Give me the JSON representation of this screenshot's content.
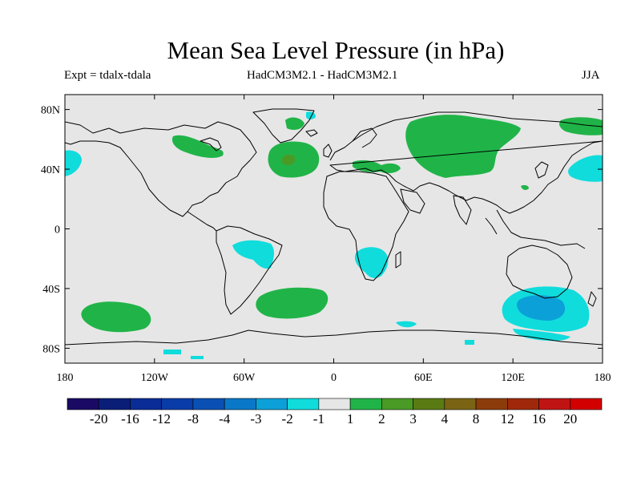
{
  "title": "Mean Sea Level Pressure (in hPa)",
  "subtitle_left": "Expt = tdalx-tdala",
  "subtitle_center": "HadCM3M2.1 - HadCM3M2.1",
  "subtitle_right": "JJA",
  "map": {
    "lon_range": [
      -180,
      180
    ],
    "lat_range": [
      -90,
      90
    ],
    "lat_ticks": [
      {
        "lat": 80,
        "label": "80N"
      },
      {
        "lat": 40,
        "label": "40N"
      },
      {
        "lat": 0,
        "label": "0"
      },
      {
        "lat": -40,
        "label": "40S"
      },
      {
        "lat": -80,
        "label": "80S"
      }
    ],
    "lon_ticks": [
      {
        "lon": -180,
        "label": "180"
      },
      {
        "lon": -120,
        "label": "120W"
      },
      {
        "lon": -60,
        "label": "60W"
      },
      {
        "lon": 0,
        "label": "0"
      },
      {
        "lon": 60,
        "label": "60E"
      },
      {
        "lon": 120,
        "label": "120E"
      },
      {
        "lon": 180,
        "label": "180"
      }
    ],
    "background_color": "#e6e6e6",
    "coastline_color": "#000000"
  },
  "colorbar": {
    "colors": [
      "#1a0a64",
      "#0a1e78",
      "#0a2c96",
      "#0a3ca8",
      "#0a50b4",
      "#0a78c8",
      "#0ca0d8",
      "#10dcdc",
      "#e6e6e6",
      "#20b448",
      "#4a9a26",
      "#5a7a14",
      "#7a6414",
      "#8c3c0a",
      "#a0280a",
      "#c01414",
      "#d20000"
    ],
    "labels": [
      "-20",
      "-16",
      "-12",
      "-8",
      "-4",
      "-3",
      "-2",
      "-1",
      "1",
      "2",
      "3",
      "4",
      "8",
      "12",
      "16",
      "20"
    ]
  },
  "anomaly_regions": [
    {
      "name": "north-atlantic-positive",
      "level": "2",
      "color": "#20b448"
    },
    {
      "name": "north-atlantic-positive-core",
      "level": "3",
      "color": "#4a9a26"
    },
    {
      "name": "eurasia-positive",
      "level": "2",
      "color": "#20b448"
    },
    {
      "name": "south-pacific-positive",
      "level": "2",
      "color": "#20b448"
    },
    {
      "name": "south-atlantic-positive",
      "level": "2",
      "color": "#20b448"
    },
    {
      "name": "australia-south-negative",
      "level": "-2",
      "color": "#10dcdc"
    },
    {
      "name": "australia-south-negative-core",
      "level": "-3",
      "color": "#0ca0d8"
    },
    {
      "name": "south-america-negative",
      "level": "-2",
      "color": "#10dcdc"
    },
    {
      "name": "southern-africa-negative",
      "level": "-2",
      "color": "#10dcdc"
    },
    {
      "name": "north-pacific-west-negative",
      "level": "-2",
      "color": "#10dcdc"
    },
    {
      "name": "north-pacific-east-negative",
      "level": "-2",
      "color": "#10dcdc"
    }
  ]
}
